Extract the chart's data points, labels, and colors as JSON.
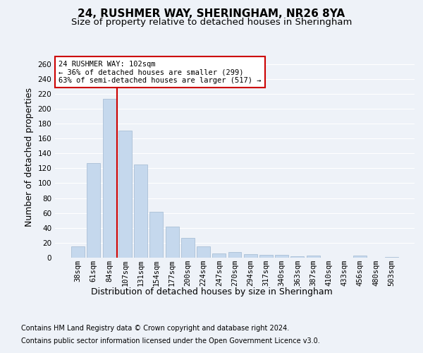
{
  "title1": "24, RUSHMER WAY, SHERINGHAM, NR26 8YA",
  "title2": "Size of property relative to detached houses in Sheringham",
  "xlabel": "Distribution of detached houses by size in Sheringham",
  "ylabel": "Number of detached properties",
  "categories": [
    "38sqm",
    "61sqm",
    "84sqm",
    "107sqm",
    "131sqm",
    "154sqm",
    "177sqm",
    "200sqm",
    "224sqm",
    "247sqm",
    "270sqm",
    "294sqm",
    "317sqm",
    "340sqm",
    "363sqm",
    "387sqm",
    "410sqm",
    "433sqm",
    "456sqm",
    "480sqm",
    "503sqm"
  ],
  "values": [
    15,
    127,
    213,
    171,
    125,
    62,
    42,
    27,
    15,
    6,
    8,
    5,
    4,
    4,
    2,
    3,
    0,
    0,
    3,
    0,
    1
  ],
  "bar_color": "#c5d8ed",
  "bar_edge_color": "#a0b8d0",
  "vline_x": 2.5,
  "vline_color": "#cc0000",
  "annotation_line1": "24 RUSHMER WAY: 102sqm",
  "annotation_line2": "← 36% of detached houses are smaller (299)",
  "annotation_line3": "63% of semi-detached houses are larger (517) →",
  "annotation_box_color": "white",
  "annotation_box_edge": "#cc0000",
  "ylim": [
    0,
    270
  ],
  "yticks": [
    0,
    20,
    40,
    60,
    80,
    100,
    120,
    140,
    160,
    180,
    200,
    220,
    240,
    260
  ],
  "footnote1": "Contains HM Land Registry data © Crown copyright and database right 2024.",
  "footnote2": "Contains public sector information licensed under the Open Government Licence v3.0.",
  "bg_color": "#eef2f8",
  "plot_bg_color": "#eef2f8",
  "grid_color": "#ffffff",
  "title1_fontsize": 11,
  "title2_fontsize": 9.5,
  "tick_fontsize": 7.5,
  "label_fontsize": 9,
  "footnote_fontsize": 7
}
